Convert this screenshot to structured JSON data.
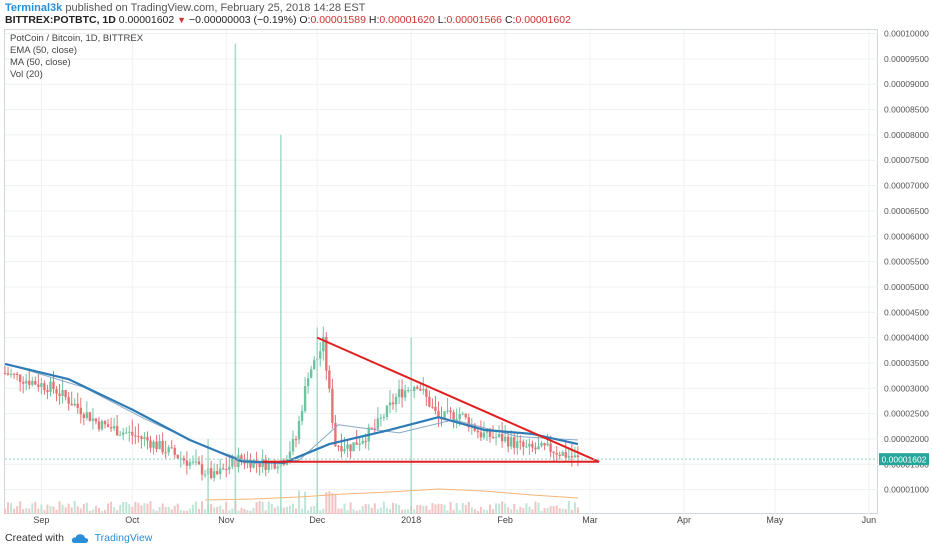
{
  "header": {
    "author": "Terminal3k",
    "published_text": "published on TradingView.com, February 25, 2018 14:28 EST",
    "symbol": "BITTREX:POTBTC, 1D",
    "last": "0.00001602",
    "change": "−0.00000003 (−0.19%)",
    "o_label": "O:",
    "o": "0.00001589",
    "h_label": "H:",
    "h": "0.00001620",
    "l_label": "L:",
    "l": "0.00001566",
    "c_label": "C:",
    "c": "0.00001602"
  },
  "legend": {
    "title": "PotCoin / Bitcoin, 1D, BITTREX",
    "ema": "EMA (50, close)",
    "ma": "MA (50, close)",
    "vol": "Vol (20)"
  },
  "footer": {
    "created": "Created with",
    "brand": "TradingView"
  },
  "colors": {
    "up": "#6fc3a3",
    "down": "#e57373",
    "ema": "#2f7bb6",
    "ma": "#89a9c4",
    "trend": "#e02020",
    "vol_ma": "#f5b577",
    "last_label": "#26a69a"
  },
  "chart_data": {
    "type": "candlestick",
    "y_axis": {
      "ticks": [
        "0.00010000",
        "0.00009500",
        "0.00009000",
        "0.00008500",
        "0.00008000",
        "0.00007500",
        "0.00007000",
        "0.00006500",
        "0.00006000",
        "0.00005500",
        "0.00005000",
        "0.00004500",
        "0.00004000",
        "0.00003500",
        "0.00003000",
        "0.00002500",
        "0.00002000",
        "0.00001500",
        "0.00001000"
      ],
      "tick_values": [
        0.0001,
        9.5e-05,
        9e-05,
        8.5e-05,
        8e-05,
        7.5e-05,
        7e-05,
        6.5e-05,
        6e-05,
        5.5e-05,
        5e-05,
        4.5e-05,
        4e-05,
        3.5e-05,
        3e-05,
        2.5e-05,
        2e-05,
        1.5e-05,
        1e-05
      ],
      "range": [
        5.2e-06,
        0.0001007
      ]
    },
    "x_axis": {
      "labels": [
        "Sep",
        "Oct",
        "Nov",
        "Dec",
        "2018",
        "Feb",
        "Mar",
        "Apr",
        "May",
        "Jun"
      ],
      "dates": [
        "2017-09-01",
        "2017-10-01",
        "2017-11-01",
        "2017-12-01",
        "2018-01-01",
        "2018-02-01",
        "2018-03-01",
        "2018-04-01",
        "2018-05-01",
        "2018-06-01"
      ],
      "range": [
        "2017-08-20",
        "2018-06-04"
      ]
    },
    "last_price_label": "0.00001602",
    "last_price": 1.602e-05,
    "ema_50": [
      [
        "2017-08-20",
        3.48e-05
      ],
      [
        "2017-09-10",
        3.18e-05
      ],
      [
        "2017-10-01",
        2.58e-05
      ],
      [
        "2017-10-20",
        1.98e-05
      ],
      [
        "2017-11-06",
        1.56e-05
      ],
      [
        "2017-11-20",
        1.53e-05
      ],
      [
        "2017-12-05",
        1.9e-05
      ],
      [
        "2017-12-25",
        2.18e-05
      ],
      [
        "2018-01-10",
        2.43e-05
      ],
      [
        "2018-01-25",
        2.18e-05
      ],
      [
        "2018-02-10",
        2.1e-05
      ],
      [
        "2018-02-25",
        1.9e-05
      ]
    ],
    "ma_50": [
      [
        "2017-08-25",
        3.4e-05
      ],
      [
        "2017-09-15",
        3.02e-05
      ],
      [
        "2017-10-05",
        2.4e-05
      ],
      [
        "2017-10-25",
        1.85e-05
      ],
      [
        "2017-11-10",
        1.52e-05
      ],
      [
        "2017-11-25",
        1.58e-05
      ],
      [
        "2017-12-08",
        2.28e-05
      ],
      [
        "2017-12-28",
        2.12e-05
      ],
      [
        "2018-01-15",
        2.38e-05
      ],
      [
        "2018-02-05",
        2.05e-05
      ],
      [
        "2018-02-25",
        1.98e-05
      ]
    ],
    "trend_upper": [
      [
        "2017-12-01",
        4e-05
      ],
      [
        "2018-03-04",
        1.55e-05
      ]
    ],
    "trend_lower": [
      [
        "2017-11-13",
        1.55e-05
      ],
      [
        "2018-03-04",
        1.55e-05
      ]
    ],
    "volume_spikes": [
      [
        "2017-11-04",
        9.8e-05
      ],
      [
        "2017-11-19",
        8e-05
      ],
      [
        "2017-12-01",
        4.2e-05
      ],
      [
        "2018-01-01",
        4e-05
      ],
      [
        "2017-10-26",
        2e-05
      ]
    ]
  }
}
